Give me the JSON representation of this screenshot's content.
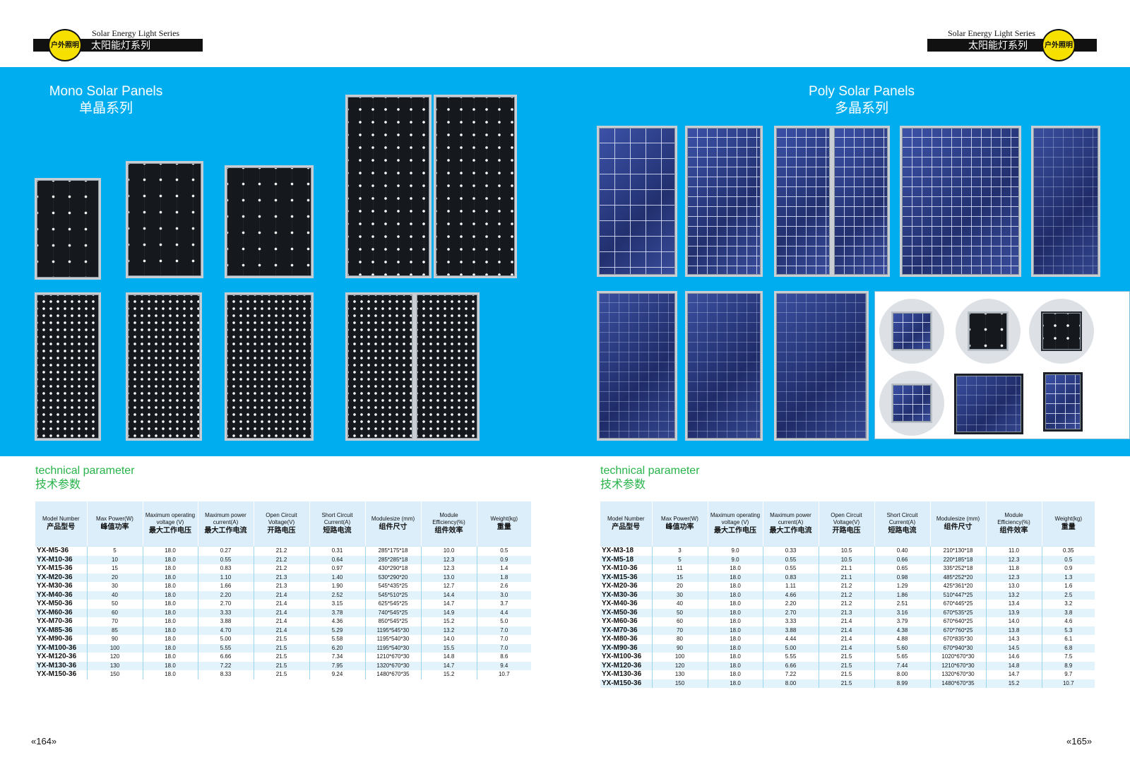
{
  "left_page": {
    "series_en": "Solar Energy Light Series",
    "series_zh": "太阳能灯系列",
    "logo_text": "户外照明",
    "section_title_en": "Mono Solar Panels",
    "section_title_zh": "单晶系列",
    "tech_en": "technical parameter",
    "tech_zh": "技术参数",
    "page_number": "«164»",
    "table": {
      "headers": [
        {
          "en": "Model Number",
          "zh": "产品型号"
        },
        {
          "en": "Max Power(W)",
          "zh": "峰值功率"
        },
        {
          "en": "Maximum operating voltage (V)",
          "zh": "最大工作电压"
        },
        {
          "en": "Maximum power current(A)",
          "zh": "最大工作电流"
        },
        {
          "en": "Open Circuit Voltage(V)",
          "zh": "开路电压"
        },
        {
          "en": "Short Circuit Current(A)",
          "zh": "短路电流"
        },
        {
          "en": "Modulesize (mm)",
          "zh": "组件尺寸"
        },
        {
          "en": "Module Efficiency(%)",
          "zh": "组件效率"
        },
        {
          "en": "Weight(kg)",
          "zh": "重量"
        }
      ],
      "rows": [
        [
          "YX-M5-36",
          "5",
          "18.0",
          "0.27",
          "21.2",
          "0.31",
          "285*175*18",
          "10.0",
          "0.5"
        ],
        [
          "YX-M10-36",
          "10",
          "18.0",
          "0.55",
          "21.2",
          "0.64",
          "285*285*18",
          "12.3",
          "0.9"
        ],
        [
          "YX-M15-36",
          "15",
          "18.0",
          "0.83",
          "21.2",
          "0.97",
          "430*290*18",
          "12.3",
          "1.4"
        ],
        [
          "YX-M20-36",
          "20",
          "18.0",
          "1.10",
          "21.3",
          "1.40",
          "530*290*20",
          "13.0",
          "1.8"
        ],
        [
          "YX-M30-36",
          "30",
          "18.0",
          "1.66",
          "21.3",
          "1.90",
          "545*435*25",
          "12.7",
          "2.6"
        ],
        [
          "YX-M40-36",
          "40",
          "18.0",
          "2.20",
          "21.4",
          "2.52",
          "545*510*25",
          "14.4",
          "3.0"
        ],
        [
          "YX-M50-36",
          "50",
          "18.0",
          "2.70",
          "21.4",
          "3.15",
          "625*545*25",
          "14.7",
          "3.7"
        ],
        [
          "YX-M60-36",
          "60",
          "18.0",
          "3.33",
          "21.4",
          "3.78",
          "740*545*25",
          "14.9",
          "4.4"
        ],
        [
          "YX-M70-36",
          "70",
          "18.0",
          "3.88",
          "21.4",
          "4.36",
          "850*545*25",
          "15.2",
          "5.0"
        ],
        [
          "YX-M85-36",
          "85",
          "18.0",
          "4.70",
          "21.4",
          "5.29",
          "1195*545*30",
          "13.2",
          "7.0"
        ],
        [
          "YX-M90-36",
          "90",
          "18.0",
          "5.00",
          "21.5",
          "5.58",
          "1195*540*30",
          "14.0",
          "7.0"
        ],
        [
          "YX-M100-36",
          "100",
          "18.0",
          "5.55",
          "21.5",
          "6.20",
          "1195*540*30",
          "15.5",
          "7.0"
        ],
        [
          "YX-M120-36",
          "120",
          "18.0",
          "6.66",
          "21.5",
          "7.34",
          "1210*670*30",
          "14.8",
          "8.6"
        ],
        [
          "YX-M130-36",
          "130",
          "18.0",
          "7.22",
          "21.5",
          "7.95",
          "1320*670*30",
          "14.7",
          "9.4"
        ],
        [
          "YX-M150-36",
          "150",
          "18.0",
          "8.33",
          "21.5",
          "9.24",
          "1480*670*35",
          "15.2",
          "10.7"
        ]
      ]
    }
  },
  "right_page": {
    "series_en": "Solar Energy Light Series",
    "series_zh": "太阳能灯系列",
    "logo_text": "户外照明",
    "section_title_en": "Poly Solar Panels",
    "section_title_zh": "多晶系列",
    "tech_en": "technical parameter",
    "tech_zh": "技术参数",
    "page_number": "«165»",
    "table": {
      "headers": [
        {
          "en": "Model Number",
          "zh": "产品型号"
        },
        {
          "en": "Max Power(W)",
          "zh": "峰值功率"
        },
        {
          "en": "Maximum operating voltage (V)",
          "zh": "最大工作电压"
        },
        {
          "en": "Maximum power current(A)",
          "zh": "最大工作电流"
        },
        {
          "en": "Open Circuit Voltage(V)",
          "zh": "开路电压"
        },
        {
          "en": "Short Circuit Current(A)",
          "zh": "短路电流"
        },
        {
          "en": "Modulesize (mm)",
          "zh": "组件尺寸"
        },
        {
          "en": "Module Efficiency(%)",
          "zh": "组件效率"
        },
        {
          "en": "Weight(kg)",
          "zh": "重量"
        }
      ],
      "rows": [
        [
          "YX-M3-18",
          "3",
          "9.0",
          "0.33",
          "10.5",
          "0.40",
          "210*130*18",
          "11.0",
          "0.35"
        ],
        [
          "YX-M5-18",
          "5",
          "9.0",
          "0.55",
          "10.5",
          "0.66",
          "220*185*18",
          "12.3",
          "0.5"
        ],
        [
          "YX-M10-36",
          "11",
          "18.0",
          "0.55",
          "21.1",
          "0.65",
          "335*252*18",
          "11.8",
          "0.9"
        ],
        [
          "YX-M15-36",
          "15",
          "18.0",
          "0.83",
          "21.1",
          "0.98",
          "485*252*20",
          "12.3",
          "1.3"
        ],
        [
          "YX-M20-36",
          "20",
          "18.0",
          "1.11",
          "21.2",
          "1.29",
          "425*361*20",
          "13.0",
          "1.6"
        ],
        [
          "YX-M30-36",
          "30",
          "18.0",
          "4.66",
          "21.2",
          "1.86",
          "510*447*25",
          "13.2",
          "2.5"
        ],
        [
          "YX-M40-36",
          "40",
          "18.0",
          "2.20",
          "21.2",
          "2.51",
          "670*445*25",
          "13.4",
          "3.2"
        ],
        [
          "YX-M50-36",
          "50",
          "18.0",
          "2.70",
          "21.3",
          "3.16",
          "670*535*25",
          "13.9",
          "3.8"
        ],
        [
          "YX-M60-36",
          "60",
          "18.0",
          "3.33",
          "21.4",
          "3.79",
          "670*640*25",
          "14.0",
          "4.6"
        ],
        [
          "YX-M70-36",
          "70",
          "18.0",
          "3.88",
          "21.4",
          "4.38",
          "670*760*25",
          "13.8",
          "5.3"
        ],
        [
          "YX-M80-36",
          "80",
          "18.0",
          "4.44",
          "21.4",
          "4.88",
          "670*835*30",
          "14.3",
          "6.1"
        ],
        [
          "YX-M90-36",
          "90",
          "18.0",
          "5.00",
          "21.4",
          "5.60",
          "670*940*30",
          "14.5",
          "6.8"
        ],
        [
          "YX-M100-36",
          "100",
          "18.0",
          "5.55",
          "21.5",
          "5.65",
          "1020*670*30",
          "14.6",
          "7.5"
        ],
        [
          "YX-M120-36",
          "120",
          "18.0",
          "6.66",
          "21.5",
          "7.44",
          "1210*670*30",
          "14.8",
          "8.9"
        ],
        [
          "YX-M130-36",
          "130",
          "18.0",
          "7.22",
          "21.5",
          "8.00",
          "1320*670*30",
          "14.7",
          "9.7"
        ],
        [
          "YX-M150-36",
          "150",
          "18.0",
          "8.00",
          "21.5",
          "8.99",
          "1480*670*35",
          "15.2",
          "10.7"
        ]
      ]
    }
  }
}
